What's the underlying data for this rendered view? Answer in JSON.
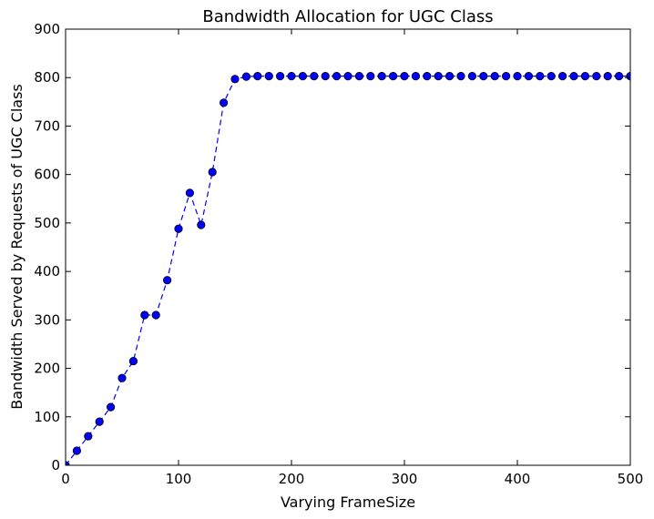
{
  "chart_data": {
    "type": "line",
    "title": "Bandwidth Allocation for UGC Class",
    "xlabel": "Varying FrameSize",
    "ylabel": "Bandwidth Served by Requests of UGC Class",
    "xlim": [
      0,
      500
    ],
    "ylim": [
      0,
      900
    ],
    "xticks": [
      0,
      100,
      200,
      300,
      400,
      500
    ],
    "yticks": [
      0,
      100,
      200,
      300,
      400,
      500,
      600,
      700,
      800,
      900
    ],
    "grid": false,
    "style": {
      "line": "dashed",
      "marker": "circle",
      "color": "#0000ff",
      "marker_edge": "#000000"
    },
    "series": [
      {
        "x": [
          0,
          10,
          20,
          30,
          40,
          50,
          60,
          70,
          80,
          90,
          100,
          110,
          120,
          130,
          140,
          150,
          160,
          170,
          180,
          190,
          200,
          210,
          220,
          230,
          240,
          250,
          260,
          270,
          280,
          290,
          300,
          310,
          320,
          330,
          340,
          350,
          360,
          370,
          380,
          390,
          400,
          410,
          420,
          430,
          440,
          450,
          460,
          470,
          480,
          490,
          500
        ],
        "y": [
          0,
          30,
          60,
          90,
          120,
          180,
          215,
          310,
          310,
          382,
          488,
          562,
          496,
          605,
          748,
          797,
          802,
          803,
          803,
          803,
          803,
          803,
          803,
          803,
          803,
          803,
          803,
          803,
          803,
          803,
          803,
          803,
          803,
          803,
          803,
          803,
          803,
          803,
          803,
          803,
          803,
          803,
          803,
          803,
          803,
          803,
          803,
          803,
          803,
          803,
          803
        ]
      }
    ]
  }
}
